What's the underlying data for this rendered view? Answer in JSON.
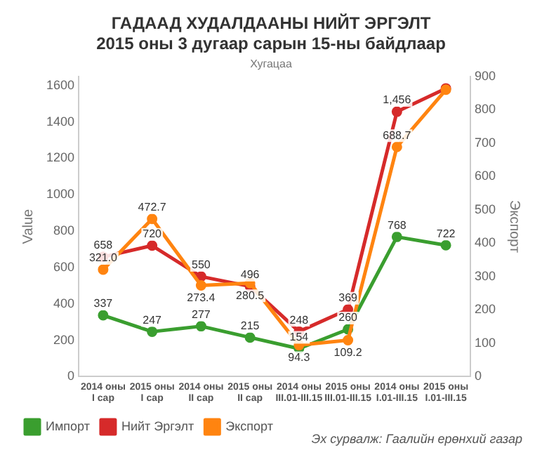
{
  "chart_data": {
    "type": "line",
    "title": [
      "ГАДААД ХУДАЛДААНЫ НИЙТ ЭРГЭЛТ",
      "2015 оны 3 дугаар сарын 15-ны байдлаар"
    ],
    "xlabel": "Хугацаа",
    "ylabel": "Value",
    "y2label": "Экспорт",
    "categories": [
      "2014 оны I сар",
      "2015 оны I сар",
      "2014 оны II сар",
      "2015 оны II сар",
      "2014 оны III.01-III.15",
      "2015 оны III.01-III.15",
      "2014 оны I.01-III.15",
      "2015 оны I.01-III.15"
    ],
    "series": [
      {
        "name": "Импорт",
        "color": "#3a9e2f",
        "values": [
          337,
          247,
          277,
          215,
          154,
          260,
          768,
          722
        ],
        "value_labels": [
          "337",
          "247",
          "277",
          "215",
          "154",
          "260",
          "768",
          "722"
        ]
      },
      {
        "name": "Нийт Эргэлт",
        "color": "#d62a2a",
        "values": [
          658,
          720,
          550,
          496,
          248,
          369,
          1456,
          1584
        ],
        "value_labels": [
          "658",
          "720",
          "550",
          "496",
          "248",
          "369",
          "1,456",
          null
        ]
      },
      {
        "name": "Экспорт",
        "color": "#ff8410",
        "axis": "y2",
        "values": [
          321.0,
          472.7,
          273.4,
          280.5,
          94.3,
          109.2,
          688.7,
          860
        ],
        "value_labels": [
          "321.0",
          "472.7",
          "273.4",
          "280.5",
          "94.3",
          "109.2",
          "688.7",
          null
        ]
      }
    ],
    "ylim": [
      0,
      1650
    ],
    "yticks": [
      0,
      200,
      400,
      600,
      800,
      1000,
      1200,
      1400,
      1600
    ],
    "y2lim": [
      0,
      900
    ],
    "y2ticks": [
      0,
      100,
      200,
      300,
      400,
      500,
      600,
      700,
      800,
      900
    ],
    "grid": false,
    "legend": "bottom",
    "marker": "circle",
    "line_style": "solid",
    "annotations": [
      "Эх сурвалж: Гаалийн ерөнхий газар"
    ]
  }
}
